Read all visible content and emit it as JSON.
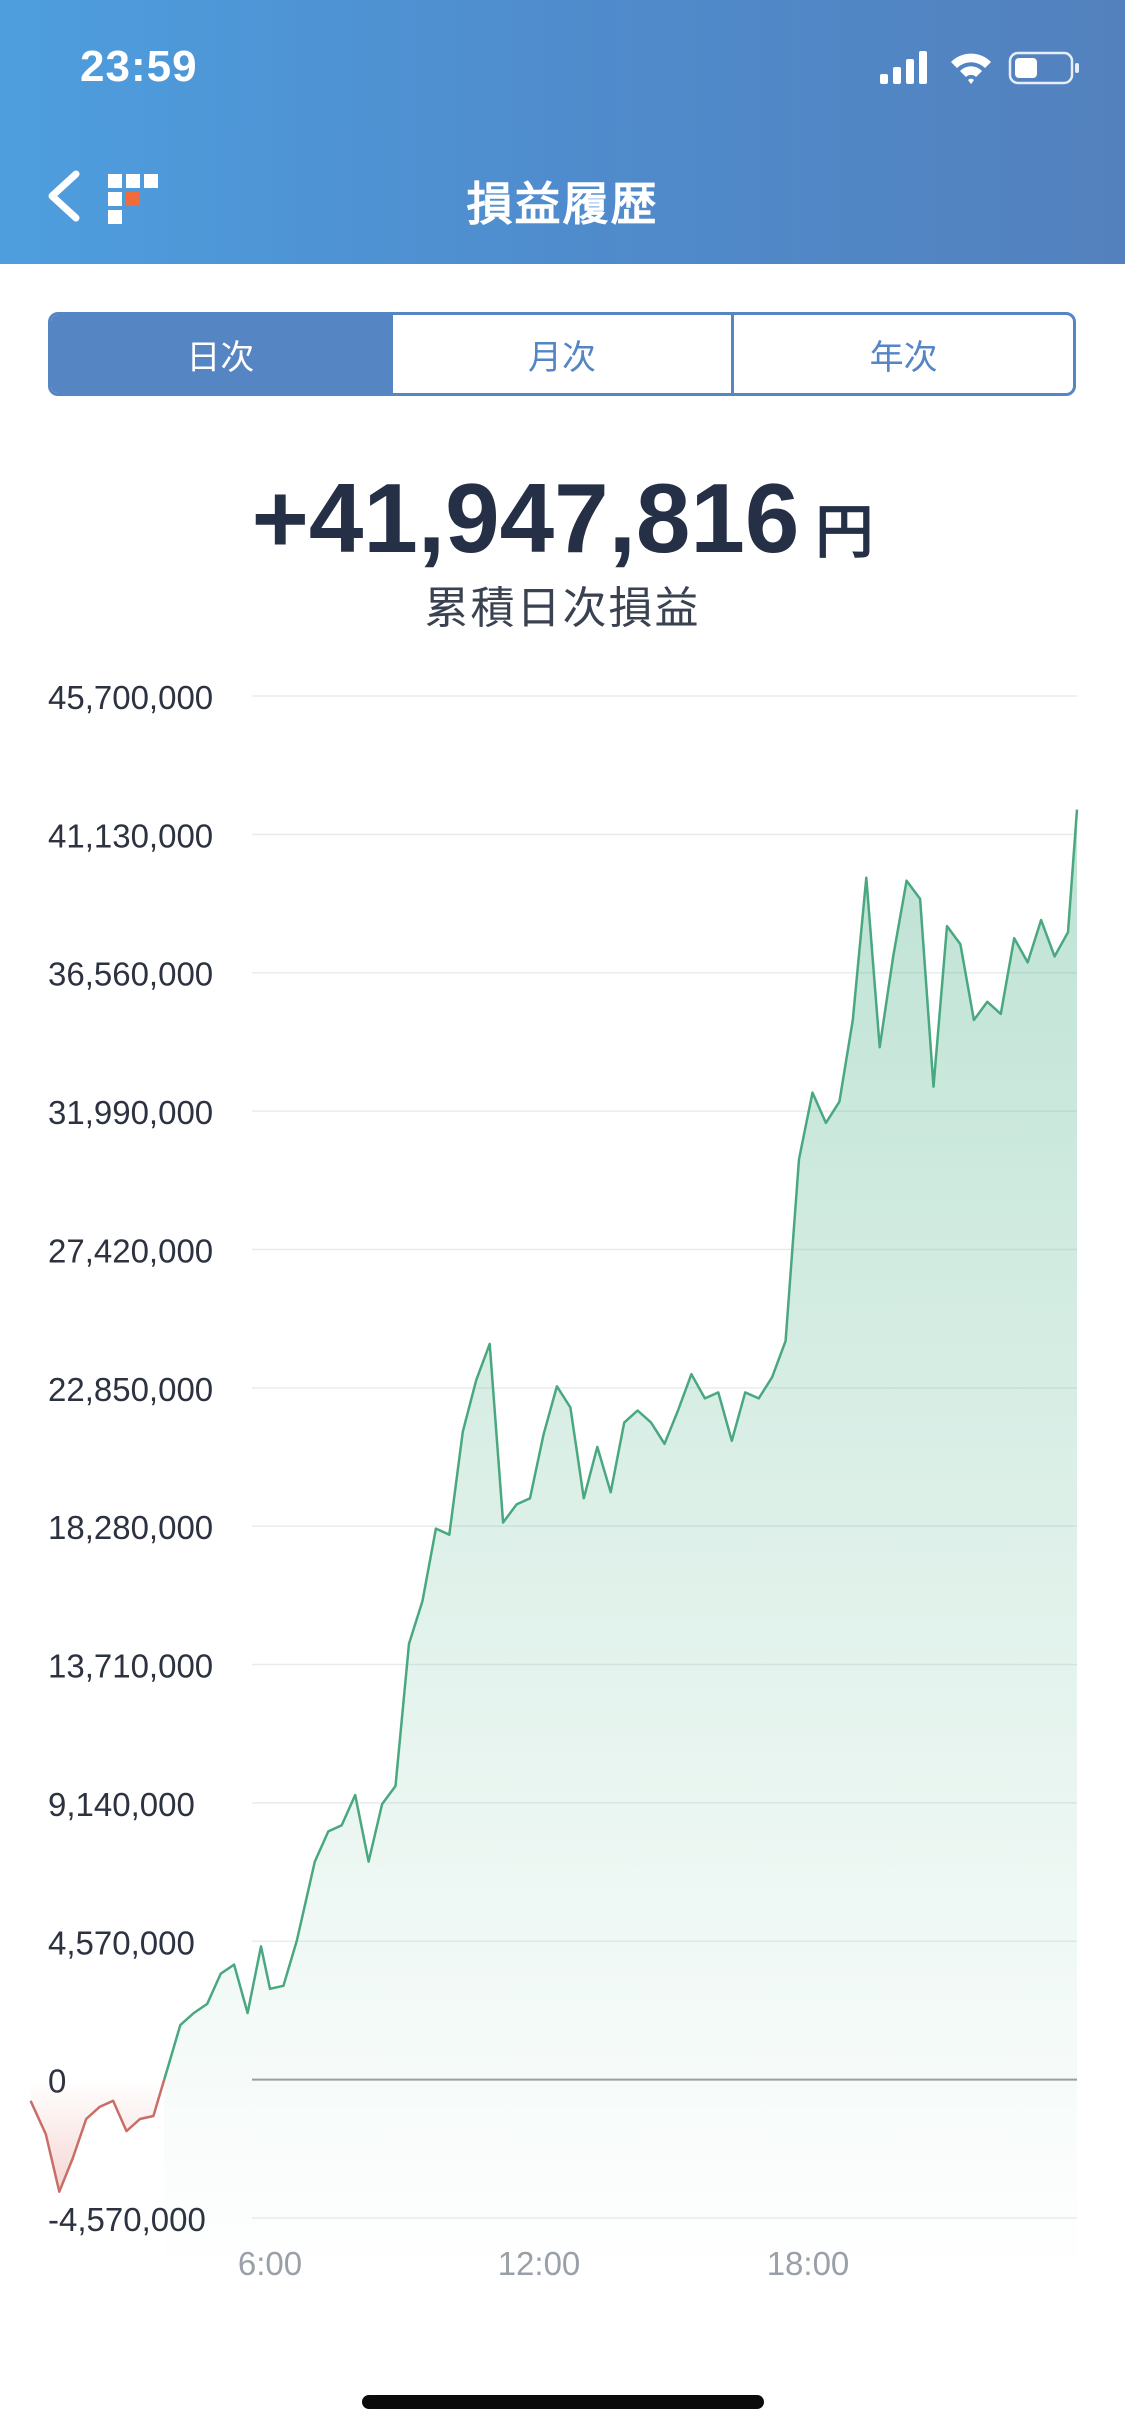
{
  "status_bar": {
    "time": "23:59",
    "icons": [
      "signal-icon",
      "wifi-icon",
      "battery-icon"
    ]
  },
  "nav": {
    "title": "損益履歴",
    "back_icon": "chevron-left-icon",
    "logo_icon": "app-logo-icon"
  },
  "tabs": [
    {
      "label": "日次",
      "active": true
    },
    {
      "label": "月次",
      "active": false
    },
    {
      "label": "年次",
      "active": false
    }
  ],
  "summary": {
    "amount": "+41,947,816",
    "unit": "円",
    "label": "累積日次損益"
  },
  "colors": {
    "header_start": "#4e9ede",
    "header_end": "#5381bd",
    "accent": "#5685c4",
    "positive_line": "#4aa880",
    "negative_line": "#c96e66",
    "text_dark": "#252f45"
  },
  "chart_data": {
    "type": "area",
    "y_ticks": [
      "45,700,000",
      "41,130,000",
      "36,560,000",
      "31,990,000",
      "27,420,000",
      "22,850,000",
      "18,280,000",
      "13,710,000",
      "9,140,000",
      "4,570,000",
      "0",
      "-4,570,000"
    ],
    "x_ticks": [
      "6:00",
      "12:00",
      "18:00"
    ],
    "ylim": [
      -4570000,
      45700000
    ],
    "xlim_hours": [
      0.66,
      24
    ],
    "grid": true,
    "series": [
      {
        "x": [
          0.66,
          1,
          1.3,
          1.6,
          1.9,
          2.2,
          2.5,
          2.8,
          3.1,
          3.4,
          3.7,
          4,
          4.3,
          4.6,
          4.9,
          5.2,
          5.5,
          5.8,
          6.0,
          6.3,
          6.6,
          7,
          7.3,
          7.6,
          7.9,
          8.2,
          8.5,
          8.8,
          9.1,
          9.4,
          9.7,
          10,
          10.3,
          10.6,
          10.9,
          11.2,
          11.5,
          11.8,
          12.1,
          12.4,
          12.7,
          13,
          13.3,
          13.6,
          13.9,
          14.2,
          14.5,
          14.8,
          15.1,
          15.4,
          15.7,
          16,
          16.3,
          16.6,
          16.9,
          17.2,
          17.5,
          17.8,
          18.1,
          18.4,
          18.7,
          19,
          19.3,
          19.6,
          19.9,
          20.2,
          20.5,
          20.8,
          21.1,
          21.4,
          21.7,
          22,
          22.3,
          22.6,
          22.9,
          23.2,
          23.5,
          23.8,
          24
        ],
        "y": [
          -700000,
          -1800000,
          -3700000,
          -2600000,
          -1300000,
          -900000,
          -700000,
          -1700000,
          -1300000,
          -1200000,
          300000,
          1800000,
          2200000,
          2500000,
          3500000,
          3800000,
          2200000,
          4400000,
          3000000,
          3100000,
          4600000,
          7200000,
          8200000,
          8400000,
          9400000,
          7200000,
          9100000,
          9700000,
          14400000,
          15800000,
          18200000,
          18000000,
          21400000,
          23100000,
          24300000,
          18400000,
          19000000,
          19200000,
          21300000,
          22900000,
          22200000,
          19200000,
          20900000,
          19400000,
          21700000,
          22100000,
          21700000,
          21000000,
          22100000,
          23300000,
          22500000,
          22700000,
          21100000,
          22700000,
          22500000,
          23200000,
          24400000,
          30400000,
          32600000,
          31600000,
          32300000,
          35000000,
          39700000,
          34100000,
          37100000,
          39600000,
          39000000,
          32800000,
          38100000,
          37500000,
          35000000,
          35600000,
          35200000,
          37700000,
          36900000,
          38300000,
          37100000,
          37900000,
          41947816
        ]
      }
    ]
  }
}
